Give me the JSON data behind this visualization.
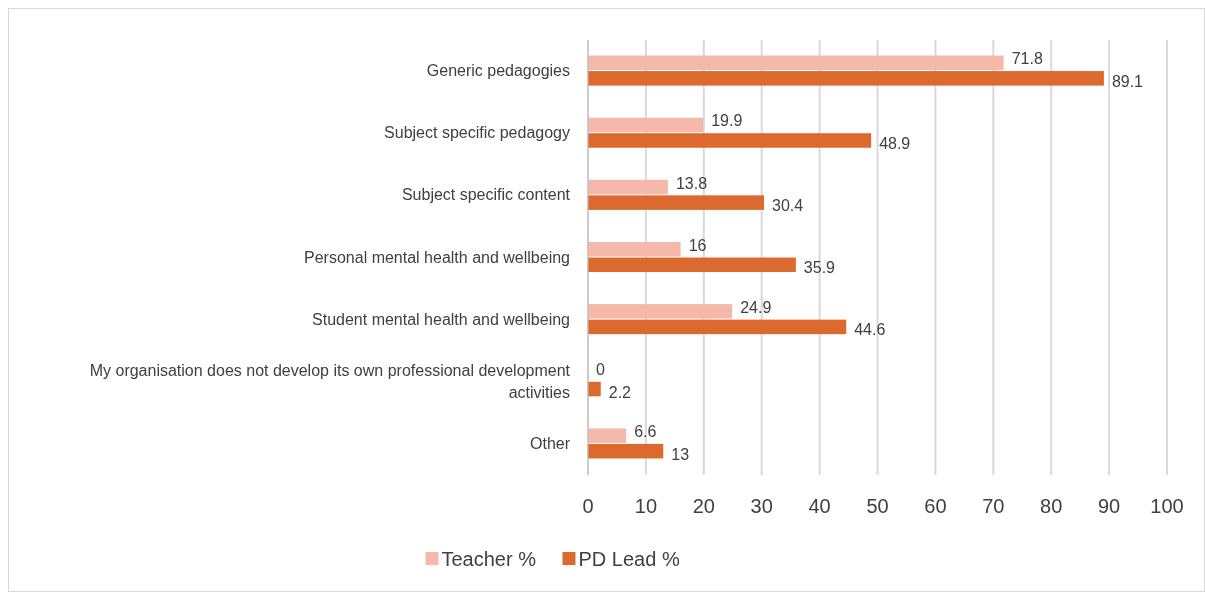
{
  "chart_data": {
    "type": "bar",
    "orientation": "horizontal",
    "categories": [
      "Generic pedagogies",
      "Subject specific pedagogy",
      "Subject specific content",
      "Personal mental health and wellbeing",
      "Student mental health and wellbeing",
      "My organisation does not develop its own professional development activities",
      "Other"
    ],
    "series": [
      {
        "name": "Teacher %",
        "color": "#f4b9aa",
        "values": [
          71.8,
          19.9,
          13.8,
          16,
          24.9,
          0,
          6.6
        ]
      },
      {
        "name": "PD Lead %",
        "color": "#dc6a2e",
        "values": [
          89.1,
          48.9,
          30.4,
          35.9,
          44.6,
          2.2,
          13
        ]
      }
    ],
    "xlim": [
      0,
      100
    ],
    "xticks": [
      0,
      10,
      20,
      30,
      40,
      50,
      60,
      70,
      80,
      90,
      100
    ],
    "grid": "x",
    "legend": "bottom",
    "data_labels": true
  }
}
